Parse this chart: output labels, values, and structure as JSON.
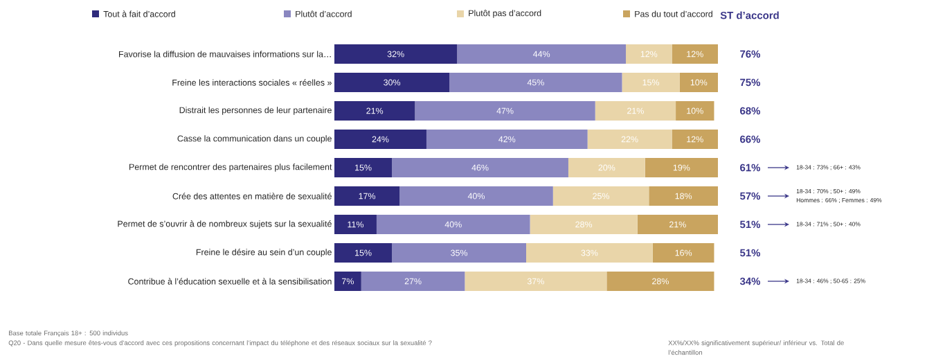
{
  "chart_data": {
    "type": "bar",
    "orientation": "horizontal",
    "stacked": true,
    "legend": "top",
    "tick_labels": "y",
    "categories": [
      "Favorise la diffusion de mauvaises informations sur la…",
      "Freine les interactions sociales « réelles »",
      "Distrait les personnes de leur partenaire",
      "Casse la communication dans un couple",
      "Permet de rencontrer des partenaires plus facilement",
      "Crée des attentes en matière de sexualité",
      "Permet de s’ouvrir à de nombreux sujets sur la sexualité",
      "Freine le désire au sein d’un couple",
      "Contribue à l’éducation sexuelle et à la sensibilisation"
    ],
    "series": [
      {
        "name": "Tout à fait d’accord",
        "color": "#2f2b7c",
        "values": [
          32,
          30,
          21,
          24,
          15,
          17,
          11,
          15,
          7
        ],
        "value_labels": [
          "32%",
          "30%",
          "21%",
          "24%",
          "15%",
          "17%",
          "11%",
          "15%",
          "7%"
        ]
      },
      {
        "name": "Plutôt d’accord",
        "color": "#8a87c0",
        "values": [
          44,
          45,
          47,
          42,
          46,
          40,
          40,
          35,
          27
        ],
        "value_labels": [
          "44%",
          "45%",
          "47%",
          "42%",
          "46%",
          "40%",
          "40%",
          "35%",
          "27%"
        ]
      },
      {
        "name": "Plutôt pas d’accord",
        "color": "#e9d5a9",
        "values": [
          12,
          15,
          21,
          22,
          20,
          25,
          28,
          33,
          37
        ],
        "value_labels": [
          "12%",
          "15%",
          "21%",
          "22%",
          "20%",
          "25%",
          "28%",
          "33%",
          "37%"
        ]
      },
      {
        "name": "Pas du tout d’accord",
        "color": "#c9a45f",
        "values": [
          12,
          10,
          10,
          12,
          19,
          18,
          21,
          16,
          28
        ],
        "value_labels": [
          "12%",
          "10%",
          "10%",
          "12%",
          "19%",
          "18%",
          "21%",
          "16%",
          "28%"
        ]
      }
    ],
    "annotations": [
      "ST d’accord",
      "Base totale Français 18+ : 500 individus",
      "Q20 - Dans quelle mesure êtes-vous d’accord avec ces propositions concernant l’impact du téléphone et des réseaux sociaux sur la sexualité ?",
      "XX%/XX% significativement supérieur/ inférieur vs. Total de l’échantillon",
      "76%",
      "75%",
      "68%",
      "66%",
      "61%",
      "57%",
      "51%",
      "51%",
      "34%",
      "18-34 : 73% ; 66+ : 43%",
      "18-34 : 70% ; 50+ : 49%",
      "Hommes : 66% ; Femmes : 49%",
      "18-34 : 71% ; 50+ : 40%",
      "18-34 : 46% ; 50-65 : 25%"
    ]
  }
}
